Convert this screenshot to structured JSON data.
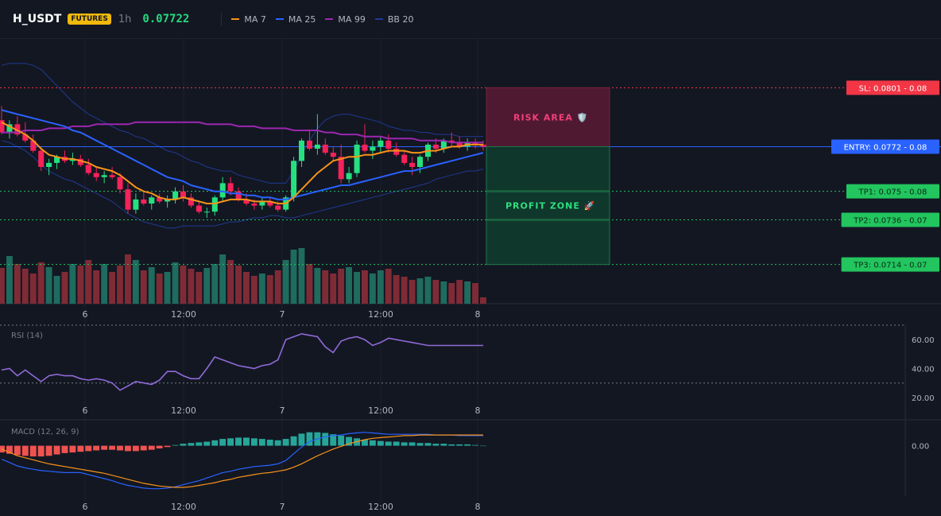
{
  "header": {
    "symbol": "H_USDT",
    "badge": "FUTURES",
    "interval": "1h",
    "price": "0.07722",
    "legend": [
      {
        "label": "MA 7",
        "color": "#f7931a"
      },
      {
        "label": "MA 25",
        "color": "#2962ff"
      },
      {
        "label": "MA 99",
        "color": "#9c27b0"
      },
      {
        "label": "BB 20",
        "color": "#1f3a93"
      }
    ]
  },
  "chart_data": [
    {
      "type": "candlestick",
      "x_ticks": [
        "6",
        "12:00",
        "7",
        "12:00",
        "8"
      ],
      "levels": [
        {
          "label": "SL: 0.0801 - 0.08",
          "value": 0.0801,
          "color": "#f23645"
        },
        {
          "label": "ENTRY: 0.0772 - 0.08",
          "value": 0.0772,
          "color": "#2962ff"
        },
        {
          "label": "TP1: 0.075 - 0.08",
          "value": 0.075,
          "color": "#22c55e"
        },
        {
          "label": "TP2: 0.0736 - 0.07",
          "value": 0.0736,
          "color": "#22c55e"
        },
        {
          "label": "TP3: 0.0714 - 0.07",
          "value": 0.0714,
          "color": "#22c55e"
        }
      ],
      "zones": {
        "risk": "RISK AREA 🛡️",
        "profit": "PROFIT ZONE 🚀"
      },
      "candles": [
        [
          0.0785,
          0.0792,
          0.0778,
          0.0779
        ],
        [
          0.0779,
          0.0785,
          0.0776,
          0.0783
        ],
        [
          0.0783,
          0.0787,
          0.0777,
          0.0778
        ],
        [
          0.0778,
          0.0784,
          0.0774,
          0.0775
        ],
        [
          0.0775,
          0.0778,
          0.0769,
          0.077
        ],
        [
          0.077,
          0.0772,
          0.076,
          0.0762
        ],
        [
          0.0762,
          0.0766,
          0.0758,
          0.0764
        ],
        [
          0.0764,
          0.0768,
          0.0761,
          0.0767
        ],
        [
          0.0767,
          0.077,
          0.0764,
          0.0765
        ],
        [
          0.0765,
          0.0769,
          0.0763,
          0.0766
        ],
        [
          0.0766,
          0.0768,
          0.0762,
          0.0763
        ],
        [
          0.0763,
          0.0766,
          0.0758,
          0.0759
        ],
        [
          0.0759,
          0.0762,
          0.0755,
          0.0757
        ],
        [
          0.0757,
          0.076,
          0.0754,
          0.0758
        ],
        [
          0.0758,
          0.0762,
          0.0756,
          0.0757
        ],
        [
          0.0757,
          0.0759,
          0.0749,
          0.0751
        ],
        [
          0.0751,
          0.0754,
          0.0739,
          0.0741
        ],
        [
          0.0741,
          0.0749,
          0.0739,
          0.0746
        ],
        [
          0.0746,
          0.075,
          0.0743,
          0.0744
        ],
        [
          0.0744,
          0.0748,
          0.0741,
          0.0747
        ],
        [
          0.0747,
          0.0749,
          0.0744,
          0.0745
        ],
        [
          0.0745,
          0.0748,
          0.0742,
          0.0746
        ],
        [
          0.0746,
          0.0752,
          0.0744,
          0.075
        ],
        [
          0.075,
          0.0753,
          0.0745,
          0.0747
        ],
        [
          0.0747,
          0.0749,
          0.0742,
          0.0743
        ],
        [
          0.0743,
          0.0745,
          0.0739,
          0.074
        ],
        [
          0.074,
          0.0742,
          0.0737,
          0.074
        ],
        [
          0.074,
          0.0748,
          0.0738,
          0.0747
        ],
        [
          0.0747,
          0.0757,
          0.0745,
          0.0754
        ],
        [
          0.0754,
          0.0757,
          0.0748,
          0.075
        ],
        [
          0.075,
          0.0752,
          0.0745,
          0.0746
        ],
        [
          0.0746,
          0.0749,
          0.0743,
          0.0744
        ],
        [
          0.0744,
          0.0746,
          0.0741,
          0.0743
        ],
        [
          0.0743,
          0.0747,
          0.0741,
          0.0745
        ],
        [
          0.0745,
          0.0747,
          0.0742,
          0.0743
        ],
        [
          0.0743,
          0.0745,
          0.074,
          0.0741
        ],
        [
          0.0741,
          0.0748,
          0.074,
          0.0747
        ],
        [
          0.0747,
          0.0767,
          0.0745,
          0.0765
        ],
        [
          0.0765,
          0.0776,
          0.0762,
          0.0775
        ],
        [
          0.0775,
          0.078,
          0.077,
          0.0771
        ],
        [
          0.0771,
          0.0788,
          0.0768,
          0.0773
        ],
        [
          0.0773,
          0.0776,
          0.0768,
          0.0769
        ],
        [
          0.0769,
          0.0772,
          0.0765,
          0.0767
        ],
        [
          0.0767,
          0.0773,
          0.0754,
          0.0756
        ],
        [
          0.0756,
          0.0762,
          0.0754,
          0.0759
        ],
        [
          0.0759,
          0.0775,
          0.0757,
          0.0773
        ],
        [
          0.0773,
          0.0783,
          0.0769,
          0.077
        ],
        [
          0.077,
          0.0775,
          0.0766,
          0.0772
        ],
        [
          0.0772,
          0.0777,
          0.0769,
          0.0775
        ],
        [
          0.0775,
          0.0778,
          0.0769,
          0.0771
        ],
        [
          0.0771,
          0.0774,
          0.0767,
          0.0768
        ],
        [
          0.0768,
          0.077,
          0.0763,
          0.0764
        ],
        [
          0.0764,
          0.0767,
          0.0758,
          0.0762
        ],
        [
          0.0762,
          0.0768,
          0.0759,
          0.0767
        ],
        [
          0.0767,
          0.0774,
          0.0765,
          0.0773
        ],
        [
          0.0773,
          0.0776,
          0.0769,
          0.0771
        ],
        [
          0.0771,
          0.0776,
          0.0769,
          0.0775
        ],
        [
          0.0775,
          0.0779,
          0.0772,
          0.0774
        ],
        [
          0.0774,
          0.0777,
          0.0771,
          0.0772
        ],
        [
          0.0772,
          0.0776,
          0.077,
          0.0774
        ],
        [
          0.0774,
          0.0776,
          0.0771,
          0.0773
        ],
        [
          0.0773,
          0.0775,
          0.077,
          0.0772
        ]
      ],
      "ma7": [
        0.0784,
        0.0782,
        0.078,
        0.0778,
        0.0775,
        0.0771,
        0.0768,
        0.0767,
        0.0766,
        0.0766,
        0.0765,
        0.0764,
        0.0762,
        0.0761,
        0.076,
        0.0758,
        0.0755,
        0.0752,
        0.075,
        0.0749,
        0.0747,
        0.0746,
        0.0746,
        0.0747,
        0.0746,
        0.0745,
        0.0744,
        0.0744,
        0.0745,
        0.0746,
        0.0746,
        0.0746,
        0.0745,
        0.0745,
        0.0745,
        0.0744,
        0.0744,
        0.0747,
        0.0751,
        0.0755,
        0.0759,
        0.0762,
        0.0765,
        0.0766,
        0.0767,
        0.0767,
        0.0768,
        0.0768,
        0.0769,
        0.077,
        0.077,
        0.077,
        0.0769,
        0.0769,
        0.077,
        0.077,
        0.0771,
        0.0772,
        0.0772,
        0.0773,
        0.0773,
        0.0773
      ],
      "ma25": [
        0.079,
        0.0789,
        0.0788,
        0.0787,
        0.0786,
        0.0785,
        0.0784,
        0.0783,
        0.0782,
        0.078,
        0.0779,
        0.0777,
        0.0775,
        0.0773,
        0.0771,
        0.0769,
        0.0767,
        0.0765,
        0.0763,
        0.0761,
        0.0759,
        0.0757,
        0.0756,
        0.0755,
        0.0753,
        0.0752,
        0.0751,
        0.075,
        0.075,
        0.0749,
        0.0749,
        0.0748,
        0.0748,
        0.0747,
        0.0747,
        0.0746,
        0.0746,
        0.0747,
        0.0748,
        0.0749,
        0.075,
        0.0751,
        0.0752,
        0.0753,
        0.0753,
        0.0754,
        0.0755,
        0.0756,
        0.0757,
        0.0758,
        0.0759,
        0.076,
        0.076,
        0.0761,
        0.0762,
        0.0763,
        0.0764,
        0.0765,
        0.0766,
        0.0767,
        0.0768,
        0.0769
      ],
      "ma99": [
        0.0779,
        0.0779,
        0.0779,
        0.078,
        0.078,
        0.078,
        0.0781,
        0.0781,
        0.0781,
        0.0782,
        0.0782,
        0.0782,
        0.0783,
        0.0783,
        0.0783,
        0.0783,
        0.0783,
        0.0784,
        0.0784,
        0.0784,
        0.0784,
        0.0784,
        0.0784,
        0.0784,
        0.0784,
        0.0784,
        0.0783,
        0.0783,
        0.0783,
        0.0783,
        0.0782,
        0.0782,
        0.0782,
        0.0781,
        0.0781,
        0.0781,
        0.0781,
        0.078,
        0.078,
        0.078,
        0.078,
        0.0779,
        0.0779,
        0.0778,
        0.0778,
        0.0778,
        0.0777,
        0.0777,
        0.0777,
        0.0776,
        0.0776,
        0.0776,
        0.0776,
        0.0775,
        0.0775,
        0.0775,
        0.0775,
        0.0774,
        0.0774,
        0.0774,
        0.0774,
        0.0774
      ],
      "bb_upper": [
        0.0812,
        0.0813,
        0.0813,
        0.0813,
        0.0812,
        0.081,
        0.0806,
        0.0802,
        0.0798,
        0.0794,
        0.0791,
        0.0788,
        0.0786,
        0.0784,
        0.0782,
        0.078,
        0.0779,
        0.0777,
        0.0776,
        0.0774,
        0.0772,
        0.077,
        0.0769,
        0.0767,
        0.0765,
        0.0764,
        0.0762,
        0.0761,
        0.076,
        0.076,
        0.0758,
        0.0757,
        0.0756,
        0.0755,
        0.0754,
        0.0754,
        0.0754,
        0.076,
        0.0768,
        0.0775,
        0.0781,
        0.0785,
        0.0787,
        0.0788,
        0.0788,
        0.0787,
        0.0786,
        0.0785,
        0.0784,
        0.0782,
        0.0781,
        0.078,
        0.078,
        0.0779,
        0.0779,
        0.0778,
        0.0778,
        0.0778,
        0.0777,
        0.0777,
        0.0777,
        0.0777
      ],
      "bb_lower": [
        0.0775,
        0.0774,
        0.0772,
        0.077,
        0.0767,
        0.0763,
        0.076,
        0.0758,
        0.0756,
        0.0755,
        0.0753,
        0.0751,
        0.0749,
        0.0747,
        0.0745,
        0.0742,
        0.0739,
        0.0737,
        0.0735,
        0.0734,
        0.0733,
        0.0732,
        0.0732,
        0.0733,
        0.0733,
        0.0733,
        0.0733,
        0.0733,
        0.0734,
        0.0735,
        0.0735,
        0.0736,
        0.0737,
        0.0737,
        0.0738,
        0.0738,
        0.0737,
        0.0737,
        0.0738,
        0.0739,
        0.074,
        0.0741,
        0.0742,
        0.0743,
        0.0744,
        0.0745,
        0.0746,
        0.0747,
        0.0748,
        0.0749,
        0.075,
        0.0751,
        0.0752,
        0.0753,
        0.0754,
        0.0756,
        0.0757,
        0.0758,
        0.0759,
        0.076,
        0.076,
        0.0761
      ],
      "volume": [
        45,
        60,
        50,
        44,
        38,
        52,
        46,
        35,
        40,
        50,
        48,
        55,
        42,
        50,
        40,
        48,
        62,
        55,
        42,
        46,
        38,
        40,
        52,
        48,
        44,
        40,
        45,
        50,
        62,
        55,
        48,
        40,
        35,
        38,
        36,
        42,
        55,
        68,
        70,
        50,
        45,
        42,
        38,
        44,
        46,
        40,
        42,
        38,
        42,
        44,
        36,
        34,
        30,
        32,
        34,
        30,
        28,
        26,
        30,
        28,
        26,
        8
      ]
    },
    {
      "type": "line",
      "title": "RSI (14)",
      "y_ticks": [
        "60.00",
        "40.00",
        "20.00"
      ],
      "ylim": [
        15,
        70
      ],
      "bands": [
        70,
        30
      ],
      "x_ticks": [
        "6",
        "12:00",
        "7",
        "12:00",
        "8"
      ],
      "values": [
        39,
        40,
        35,
        39,
        35,
        31,
        35,
        36,
        35,
        35,
        33,
        32,
        33,
        32,
        30,
        25,
        28,
        31,
        30,
        29,
        32,
        38,
        38,
        35,
        33,
        33,
        40,
        48,
        46,
        44,
        42,
        41,
        40,
        42,
        43,
        46,
        60,
        62,
        64,
        63,
        62,
        55,
        51,
        59,
        61,
        62,
        60,
        56,
        58,
        61,
        60,
        59,
        58,
        57,
        56,
        56,
        56,
        56,
        56,
        56,
        56,
        56
      ]
    },
    {
      "type": "bar+line",
      "title": "MACD (12, 26, 9)",
      "y_ticks": [
        "0.00"
      ],
      "ylim": [
        -0.00075,
        0.00035
      ],
      "x_ticks": [
        "6",
        "12:00",
        "7",
        "12:00",
        "8"
      ],
      "histogram": [
        -0.0001,
        -0.00012,
        -0.00014,
        -0.00015,
        -0.00016,
        -0.00016,
        -0.00015,
        -0.00013,
        -0.00011,
        -0.0001,
        -9e-05,
        -8e-05,
        -7e-05,
        -6e-05,
        -6e-05,
        -7e-05,
        -8e-05,
        -8e-05,
        -7e-05,
        -6e-05,
        -4e-05,
        -2e-05,
        1e-05,
        3e-05,
        4e-05,
        5e-05,
        6e-05,
        8e-05,
        0.0001,
        0.00011,
        0.00012,
        0.00012,
        0.00011,
        0.0001,
        9e-05,
        8e-05,
        0.0001,
        0.00014,
        0.00018,
        0.0002,
        0.0002,
        0.00019,
        0.00017,
        0.00015,
        0.00013,
        0.00011,
        9e-05,
        8e-05,
        7e-05,
        6e-05,
        6e-05,
        5e-05,
        5e-05,
        4e-05,
        4e-05,
        3e-05,
        3e-05,
        2e-05,
        2e-05,
        2e-05,
        1e-05,
        0.0
      ],
      "macd": [
        -0.0002,
        -0.00025,
        -0.0003,
        -0.00033,
        -0.00035,
        -0.00037,
        -0.00038,
        -0.00039,
        -0.0004,
        -0.0004,
        -0.0004,
        -0.00043,
        -0.00046,
        -0.00049,
        -0.00052,
        -0.00056,
        -0.00059,
        -0.00061,
        -0.00063,
        -0.00064,
        -0.00064,
        -0.00063,
        -0.00061,
        -0.00058,
        -0.00055,
        -0.00052,
        -0.00048,
        -0.00044,
        -0.0004,
        -0.00038,
        -0.00035,
        -0.00033,
        -0.00031,
        -0.0003,
        -0.00029,
        -0.00027,
        -0.00022,
        -0.00012,
        -2e-05,
        6e-05,
        0.0001,
        0.00013,
        0.00015,
        0.00016,
        0.00018,
        0.00019,
        0.0002,
        0.00019,
        0.00018,
        0.00017,
        0.00017,
        0.00017,
        0.00017,
        0.00017,
        0.00017,
        0.00016,
        0.00016,
        0.00016,
        0.00015,
        0.00015,
        0.00015,
        0.00015
      ],
      "signal": [
        -5e-05,
        -0.0001,
        -0.00015,
        -0.00018,
        -0.00021,
        -0.00024,
        -0.00027,
        -0.00029,
        -0.00031,
        -0.00033,
        -0.00035,
        -0.00037,
        -0.00039,
        -0.00041,
        -0.00044,
        -0.00047,
        -0.0005,
        -0.00053,
        -0.00056,
        -0.00058,
        -0.0006,
        -0.00061,
        -0.00062,
        -0.00062,
        -0.00061,
        -0.00059,
        -0.00057,
        -0.00055,
        -0.00052,
        -0.0005,
        -0.00047,
        -0.00045,
        -0.00043,
        -0.00041,
        -0.0004,
        -0.00038,
        -0.00036,
        -0.00032,
        -0.00027,
        -0.00021,
        -0.00015,
        -0.0001,
        -5e-05,
        -1e-05,
        3e-05,
        6e-05,
        9e-05,
        0.00011,
        0.00012,
        0.00013,
        0.00014,
        0.00015,
        0.00015,
        0.00016,
        0.00016,
        0.00016,
        0.00016,
        0.00016,
        0.00016,
        0.00016,
        0.00016,
        0.00016
      ]
    }
  ]
}
